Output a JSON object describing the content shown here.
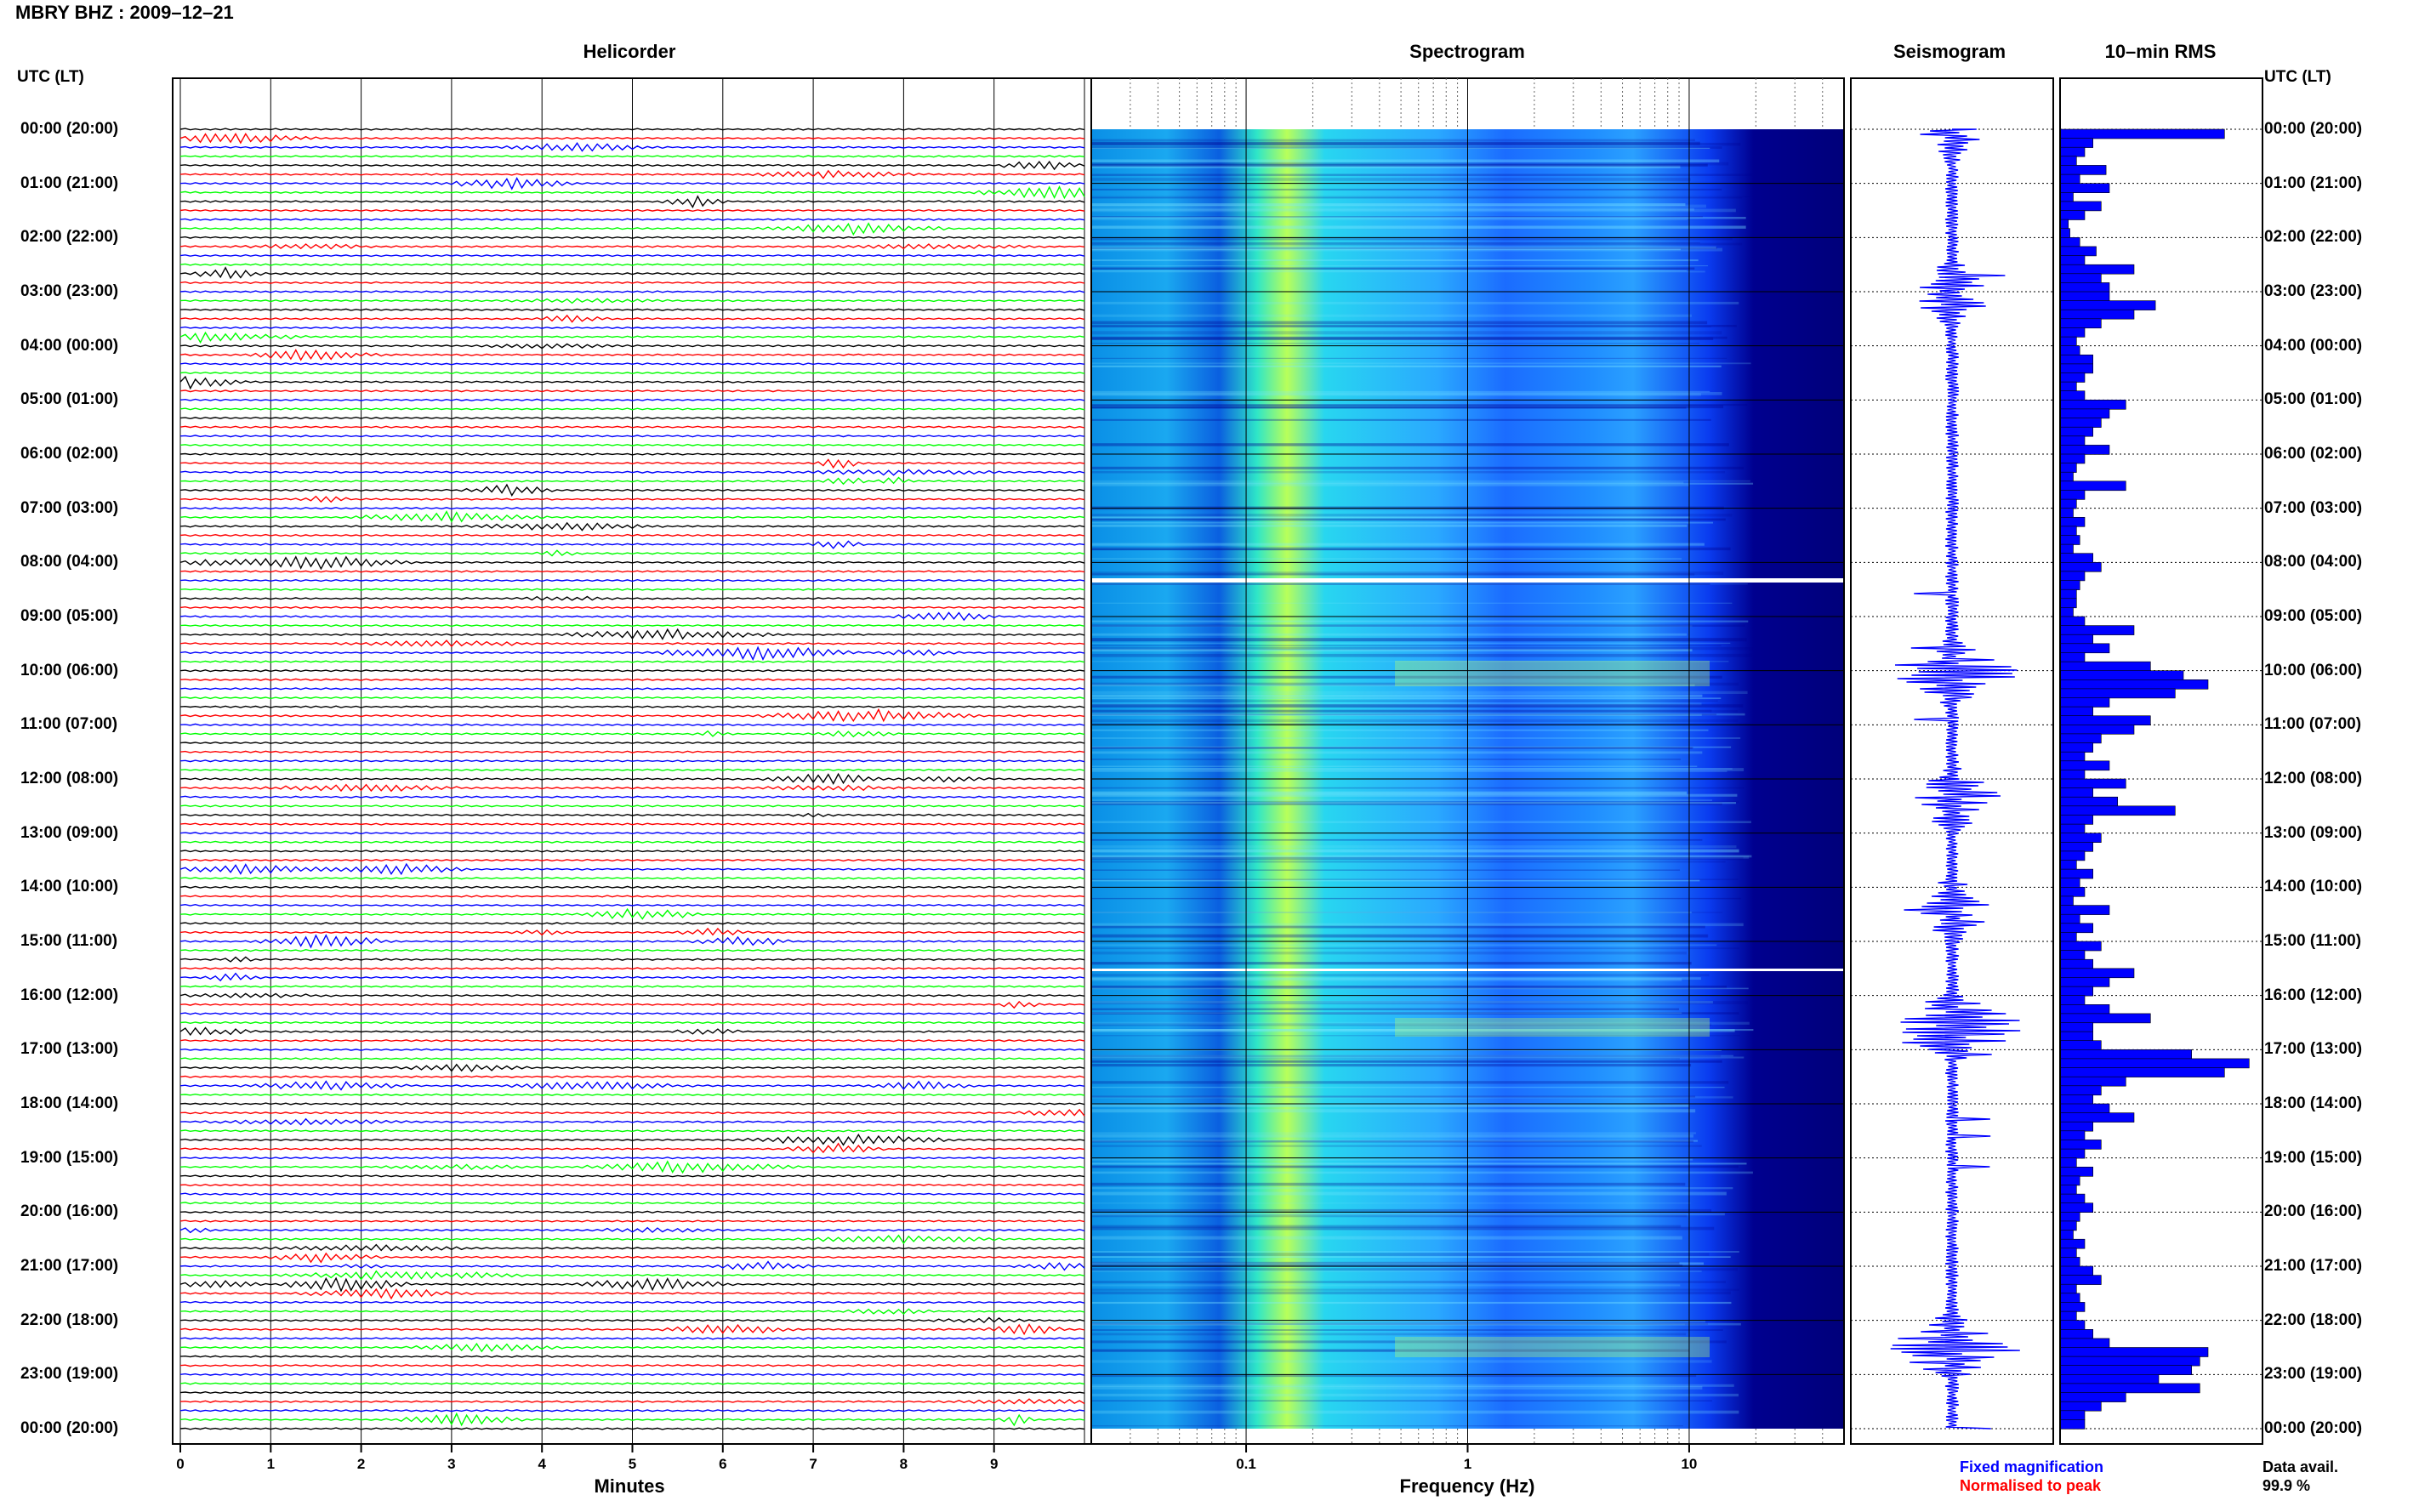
{
  "header": {
    "title": "MBRY BHZ : 2009–12–21"
  },
  "panels": {
    "helicorder": "Helicorder",
    "spectrogram": "Spectrogram",
    "seismogram": "Seismogram",
    "rms": "10–min RMS"
  },
  "time_axis": {
    "heading_left": "UTC (LT)",
    "heading_right": "UTC (LT)",
    "labels": [
      "00:00 (20:00)",
      "01:00 (21:00)",
      "02:00 (22:00)",
      "03:00 (23:00)",
      "04:00 (00:00)",
      "05:00 (01:00)",
      "06:00 (02:00)",
      "07:00 (03:00)",
      "08:00 (04:00)",
      "09:00 (05:00)",
      "10:00 (06:00)",
      "11:00 (07:00)",
      "12:00 (08:00)",
      "13:00 (09:00)",
      "14:00 (10:00)",
      "15:00 (11:00)",
      "16:00 (12:00)",
      "17:00 (13:00)",
      "18:00 (14:00)",
      "19:00 (15:00)",
      "20:00 (16:00)",
      "21:00 (17:00)",
      "22:00 (18:00)",
      "23:00 (19:00)",
      "00:00 (20:00)"
    ]
  },
  "legend": {
    "fixed": "Fixed magnification",
    "fixed_color": "#0000ff",
    "normalised": "Normalised to peak",
    "normalised_color": "#ff0000"
  },
  "availability": {
    "label": "Data avail.",
    "value": "99.9 %"
  },
  "chart_data": [
    {
      "type": "line",
      "title": "Helicorder",
      "xlabel": "Minutes",
      "x_ticks": [
        0,
        1,
        2,
        3,
        4,
        5,
        6,
        7,
        8,
        9
      ],
      "xlim": [
        0,
        10
      ],
      "trace_colors": [
        "#000000",
        "#ff0000",
        "#0000ff",
        "#00ff00"
      ],
      "lines_per_hour": 6,
      "minutes_per_line": 10
    },
    {
      "type": "heatmap",
      "title": "Spectrogram",
      "xlabel": "Frequency (Hz)",
      "x_scale": "log",
      "x_ticks": [
        "0.1",
        "1",
        "10"
      ],
      "colormap": [
        "#00007f",
        "#0000ff",
        "#007fff",
        "#00ffff",
        "#7fff7f",
        "#ffff00"
      ]
    },
    {
      "type": "line",
      "title": "Seismogram",
      "legend": "Fixed magnification"
    },
    {
      "type": "bar",
      "title": "10–min RMS",
      "bar_color": "#0000ff",
      "values": [
        1.0,
        0.2,
        0.15,
        0.1,
        0.28,
        0.12,
        0.3,
        0.08,
        0.25,
        0.15,
        0.05,
        0.06,
        0.12,
        0.22,
        0.15,
        0.45,
        0.25,
        0.3,
        0.3,
        0.58,
        0.45,
        0.25,
        0.15,
        0.1,
        0.12,
        0.2,
        0.2,
        0.15,
        0.1,
        0.15,
        0.4,
        0.3,
        0.25,
        0.2,
        0.15,
        0.3,
        0.15,
        0.1,
        0.08,
        0.4,
        0.15,
        0.1,
        0.08,
        0.15,
        0.1,
        0.12,
        0.08,
        0.2,
        0.25,
        0.15,
        0.12,
        0.1,
        0.1,
        0.08,
        0.15,
        0.45,
        0.2,
        0.3,
        0.15,
        0.55,
        0.75,
        0.9,
        0.7,
        0.3,
        0.2,
        0.55,
        0.45,
        0.25,
        0.2,
        0.15,
        0.3,
        0.15,
        0.4,
        0.2,
        0.35,
        0.7,
        0.2,
        0.15,
        0.25,
        0.2,
        0.15,
        0.1,
        0.2,
        0.12,
        0.15,
        0.08,
        0.3,
        0.12,
        0.2,
        0.1,
        0.25,
        0.15,
        0.2,
        0.45,
        0.3,
        0.2,
        0.15,
        0.3,
        0.55,
        0.2,
        0.2,
        0.25,
        0.8,
        1.15,
        1.0,
        0.4,
        0.25,
        0.2,
        0.3,
        0.45,
        0.2,
        0.15,
        0.25,
        0.15,
        0.1,
        0.2,
        0.12,
        0.1,
        0.15,
        0.2,
        0.12,
        0.1,
        0.08,
        0.15,
        0.1,
        0.12,
        0.2,
        0.25,
        0.1,
        0.12,
        0.15,
        0.1,
        0.15,
        0.2,
        0.3,
        0.9,
        0.85,
        0.8,
        0.6,
        0.85,
        0.4,
        0.25,
        0.15,
        0.15
      ]
    }
  ]
}
